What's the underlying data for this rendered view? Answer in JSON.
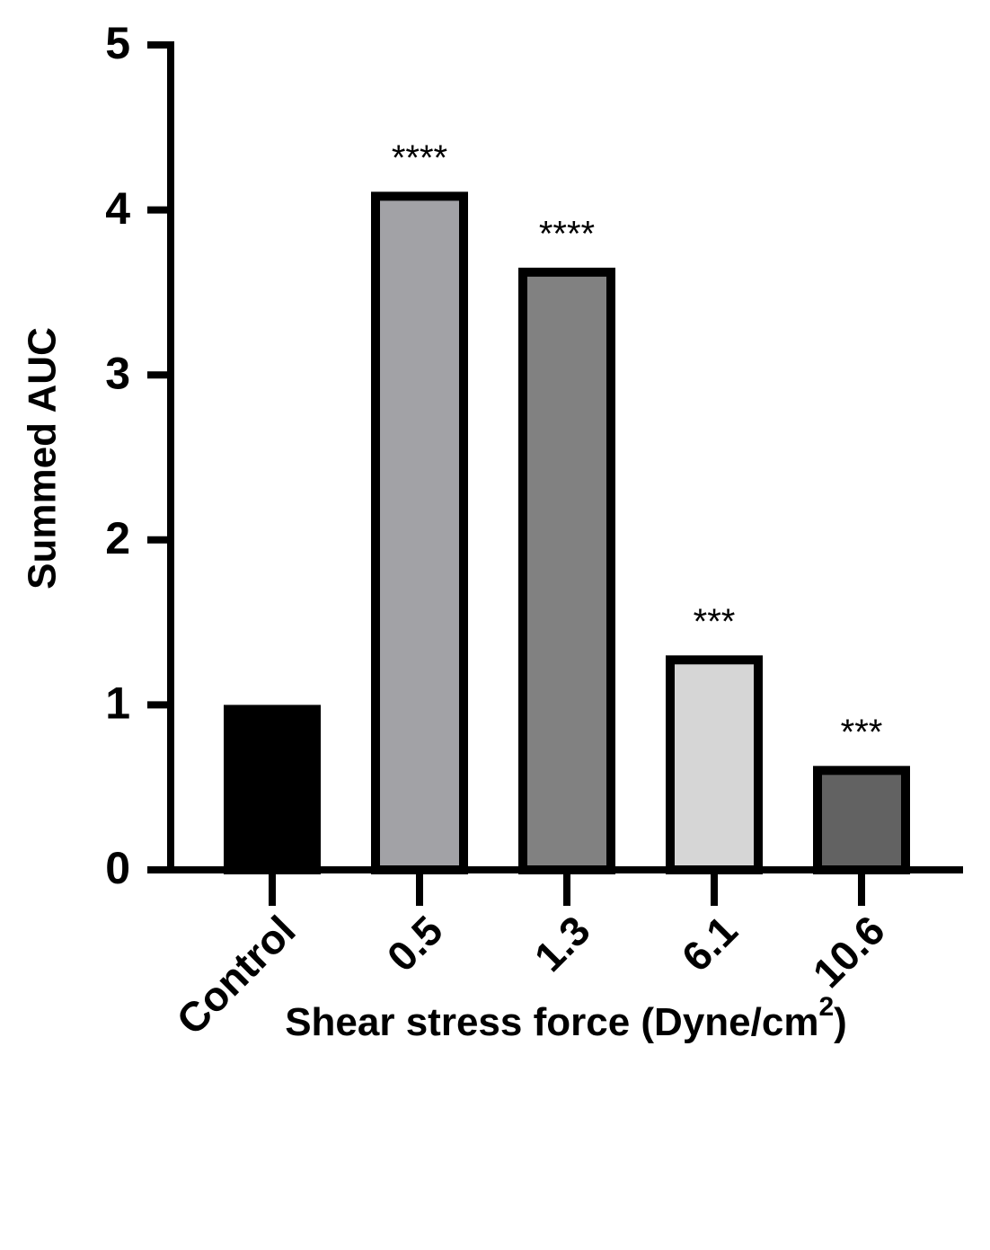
{
  "chart_data": {
    "type": "bar",
    "ylabel": "Summed AUC",
    "xlabel": {
      "text": "Shear stress force (Dyne/cm",
      "superscript": "2",
      "suffix": ")"
    },
    "categories": [
      "Control",
      "0.5",
      "1.3",
      "6.1",
      "10.6"
    ],
    "values": [
      1.0,
      4.11,
      3.65,
      1.3,
      0.63
    ],
    "colors": [
      "#000000",
      "#a2a2a6",
      "#818181",
      "#d6d6d6",
      "#626262"
    ],
    "significance": [
      null,
      "****",
      "****",
      "***",
      "***"
    ],
    "ylim": [
      0,
      5
    ],
    "yticks": [
      0,
      1,
      2,
      3,
      4,
      5
    ],
    "grid": false
  }
}
